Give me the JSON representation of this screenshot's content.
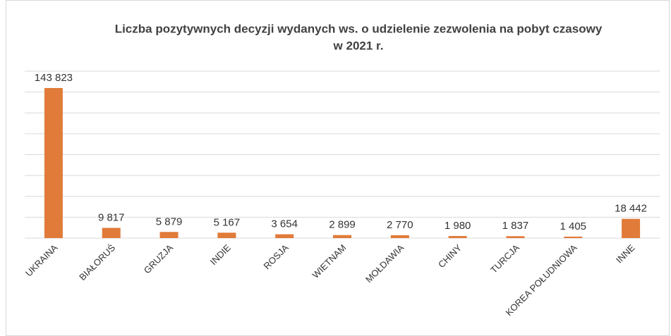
{
  "chart_data": {
    "type": "bar",
    "title": [
      "Liczba pozytywnych decyzji wydanych ws. o udzielenie zezwolenia na pobyt czasowy",
      "w 2021 r."
    ],
    "categories": [
      "UKRAINA",
      "BIAŁORUŚ",
      "GRUZJA",
      "INDIE",
      "ROSJA",
      "WIETNAM",
      "MOŁDAWIA",
      "CHINY",
      "TURCJA",
      "KOREA POŁUDNIOWA",
      "INNE"
    ],
    "values": [
      143823,
      9817,
      5879,
      5167,
      3654,
      2899,
      2770,
      1980,
      1837,
      1405,
      18442
    ],
    "value_labels": [
      "143 823",
      "9 817",
      "5 879",
      "5 167",
      "3 654",
      "2 899",
      "2 770",
      "1 980",
      "1 837",
      "1 405",
      "18 442"
    ],
    "color": "#e07b39",
    "ylim": [
      0,
      160000
    ],
    "yticks": [
      0,
      20000,
      40000,
      60000,
      80000,
      100000,
      120000,
      140000,
      160000
    ],
    "grid": true
  }
}
